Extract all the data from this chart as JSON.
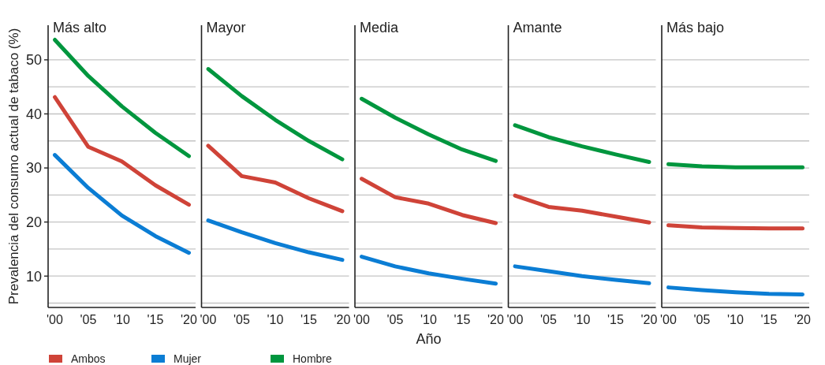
{
  "chart_data": [
    {
      "type": "line",
      "title": "Más alto",
      "ylabel": "Prevalencia del consumo actual de tabaco (%)",
      "x": [
        2000,
        2005,
        2010,
        2015,
        2020
      ],
      "xlim": [
        1999,
        2021
      ],
      "xticks": [
        {
          "value": 2000,
          "label": "'00"
        },
        {
          "value": 2005,
          "label": "'05"
        },
        {
          "value": 2010,
          "label": "'10"
        },
        {
          "value": 2015,
          "label": "'15"
        },
        {
          "value": 2020,
          "label": "'20"
        }
      ],
      "ylim": [
        4.2,
        56.4
      ],
      "yticks": [
        {
          "value": 5,
          "label": null
        },
        10,
        {
          "value": 15,
          "label": null
        },
        20,
        {
          "value": 25,
          "label": null
        },
        30,
        {
          "value": 35,
          "label": null
        },
        40,
        {
          "value": 45,
          "label": null
        },
        50
      ],
      "grid": "y",
      "legend": "bottom",
      "series": [
        {
          "name": "Ambos",
          "color": "#cf4338",
          "values": [
            43.1,
            33.9,
            31.2,
            26.8,
            23.2
          ]
        },
        {
          "name": "Mujer",
          "color": "#0b7dd4",
          "values": [
            32.4,
            26.3,
            21.2,
            17.4,
            14.3
          ]
        },
        {
          "name": "Hombre",
          "color": "#00963e",
          "values": [
            53.7,
            47.0,
            41.4,
            36.5,
            32.2
          ]
        }
      ]
    },
    {
      "type": "line",
      "title": "Mayor",
      "x": [
        2000,
        2005,
        2010,
        2015,
        2020
      ],
      "xlim": [
        1999,
        2021
      ],
      "xticks": [
        {
          "value": 2000,
          "label": "'00"
        },
        {
          "value": 2005,
          "label": "'05"
        },
        {
          "value": 2010,
          "label": "'10"
        },
        {
          "value": 2015,
          "label": "'15"
        },
        {
          "value": 2020,
          "label": "'20"
        }
      ],
      "ylim": [
        4.2,
        56.4
      ],
      "yticks": [
        {
          "value": 5,
          "label": null
        },
        10,
        {
          "value": 15,
          "label": null
        },
        20,
        {
          "value": 25,
          "label": null
        },
        30,
        {
          "value": 35,
          "label": null
        },
        40,
        {
          "value": 45,
          "label": null
        },
        50
      ],
      "grid": "y",
      "tick_labels": "x",
      "series": [
        {
          "color": "#cf4338",
          "values": [
            34.1,
            28.5,
            27.3,
            24.4,
            22.0
          ]
        },
        {
          "color": "#0b7dd4",
          "values": [
            20.3,
            18.1,
            16.1,
            14.4,
            13.0
          ]
        },
        {
          "color": "#00963e",
          "values": [
            48.3,
            43.3,
            38.9,
            35.0,
            31.6
          ]
        }
      ]
    },
    {
      "type": "line",
      "title": "Media",
      "xlabel": "Año",
      "x": [
        2000,
        2005,
        2010,
        2015,
        2020
      ],
      "xlim": [
        1999,
        2021
      ],
      "xticks": [
        {
          "value": 2000,
          "label": "'00"
        },
        {
          "value": 2005,
          "label": "'05"
        },
        {
          "value": 2010,
          "label": "'10"
        },
        {
          "value": 2015,
          "label": "'15"
        },
        {
          "value": 2020,
          "label": "'20"
        }
      ],
      "ylim": [
        4.2,
        56.4
      ],
      "yticks": [
        {
          "value": 5,
          "label": null
        },
        10,
        {
          "value": 15,
          "label": null
        },
        20,
        {
          "value": 25,
          "label": null
        },
        30,
        {
          "value": 35,
          "label": null
        },
        40,
        {
          "value": 45,
          "label": null
        },
        50
      ],
      "grid": "y",
      "tick_labels": "x",
      "series": [
        {
          "color": "#cf4338",
          "values": [
            28.0,
            24.6,
            23.4,
            21.3,
            19.8
          ]
        },
        {
          "color": "#0b7dd4",
          "values": [
            13.6,
            11.8,
            10.5,
            9.5,
            8.6
          ]
        },
        {
          "color": "#00963e",
          "values": [
            42.8,
            39.3,
            36.2,
            33.4,
            31.3
          ]
        }
      ]
    },
    {
      "type": "line",
      "title": "Amante",
      "x": [
        2000,
        2005,
        2010,
        2015,
        2020
      ],
      "xlim": [
        1999,
        2021
      ],
      "xticks": [
        {
          "value": 2000,
          "label": "'00"
        },
        {
          "value": 2005,
          "label": "'05"
        },
        {
          "value": 2010,
          "label": "'10"
        },
        {
          "value": 2015,
          "label": "'15"
        },
        {
          "value": 2020,
          "label": "'20"
        }
      ],
      "ylim": [
        4.2,
        56.4
      ],
      "yticks": [
        {
          "value": 5,
          "label": null
        },
        10,
        {
          "value": 15,
          "label": null
        },
        20,
        {
          "value": 25,
          "label": null
        },
        30,
        {
          "value": 35,
          "label": null
        },
        40,
        {
          "value": 45,
          "label": null
        },
        50
      ],
      "grid": "y",
      "tick_labels": "x",
      "series": [
        {
          "color": "#cf4338",
          "values": [
            24.9,
            22.8,
            22.1,
            21.0,
            19.9
          ]
        },
        {
          "color": "#0b7dd4",
          "values": [
            11.8,
            10.9,
            10.0,
            9.3,
            8.7
          ]
        },
        {
          "color": "#00963e",
          "values": [
            37.9,
            35.7,
            34.0,
            32.5,
            31.1
          ]
        }
      ]
    },
    {
      "type": "line",
      "title": "Más bajo",
      "x": [
        2000,
        2005,
        2010,
        2015,
        2020
      ],
      "xlim": [
        1999,
        2021
      ],
      "xticks": [
        {
          "value": 2000,
          "label": "'00"
        },
        {
          "value": 2005,
          "label": "'05"
        },
        {
          "value": 2010,
          "label": "'10"
        },
        {
          "value": 2015,
          "label": "'15"
        },
        {
          "value": 2020,
          "label": "'20"
        }
      ],
      "ylim": [
        4.2,
        56.4
      ],
      "yticks": [
        {
          "value": 5,
          "label": null
        },
        10,
        {
          "value": 15,
          "label": null
        },
        20,
        {
          "value": 25,
          "label": null
        },
        30,
        {
          "value": 35,
          "label": null
        },
        40,
        {
          "value": 45,
          "label": null
        },
        50
      ],
      "grid": "y",
      "tick_labels": "x",
      "series": [
        {
          "color": "#cf4338",
          "values": [
            19.4,
            19.0,
            18.9,
            18.8,
            18.8
          ]
        },
        {
          "color": "#0b7dd4",
          "values": [
            7.9,
            7.4,
            7.0,
            6.7,
            6.6
          ]
        },
        {
          "color": "#00963e",
          "values": [
            30.7,
            30.3,
            30.1,
            30.1,
            30.1
          ]
        }
      ]
    }
  ]
}
